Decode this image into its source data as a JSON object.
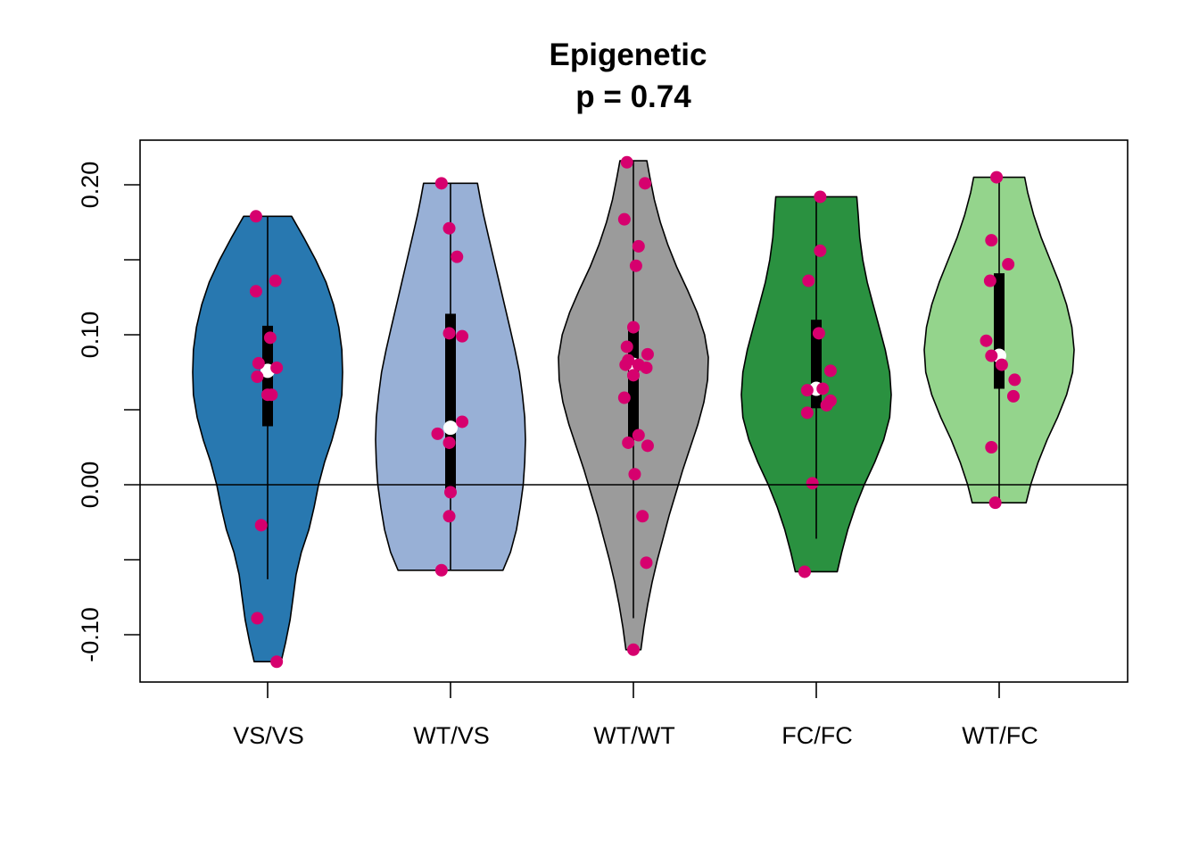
{
  "chart_data": {
    "type": "violin",
    "title": "Epigenetic",
    "subtitle": "p = 0.74",
    "xlabel": "",
    "ylabel": "",
    "ylim": [
      -0.13,
      0.23
    ],
    "yticks": [
      -0.1,
      -0.05,
      0.0,
      0.05,
      0.1,
      0.15,
      0.2
    ],
    "ytick_labels": [
      "-0.10",
      "",
      "0.00",
      "",
      "0.10",
      "",
      "0.20"
    ],
    "reference_line_y": 0.0,
    "point_color": "#d6006e",
    "median_marker_color": "#ffffff",
    "box_color": "#000000",
    "groups": [
      {
        "category": "VS/VS",
        "color": "#2878b0",
        "range": [
          -0.118,
          0.179
        ],
        "whisker": [
          -0.063,
          0.179
        ],
        "box": [
          0.039,
          0.106
        ],
        "median": 0.076,
        "density": [
          [
            -0.118,
            0.18
          ],
          [
            -0.105,
            0.24
          ],
          [
            -0.09,
            0.3
          ],
          [
            -0.075,
            0.34
          ],
          [
            -0.06,
            0.38
          ],
          [
            -0.045,
            0.45
          ],
          [
            -0.03,
            0.55
          ],
          [
            -0.015,
            0.62
          ],
          [
            0.0,
            0.68
          ],
          [
            0.015,
            0.76
          ],
          [
            0.03,
            0.86
          ],
          [
            0.045,
            0.94
          ],
          [
            0.06,
            0.99
          ],
          [
            0.075,
            1.0
          ],
          [
            0.09,
            0.99
          ],
          [
            0.105,
            0.95
          ],
          [
            0.12,
            0.88
          ],
          [
            0.135,
            0.78
          ],
          [
            0.15,
            0.64
          ],
          [
            0.165,
            0.48
          ],
          [
            0.179,
            0.32
          ]
        ],
        "points": [
          [
            -0.09,
            0.179
          ],
          [
            -0.09,
            0.129
          ],
          [
            0.06,
            0.136
          ],
          [
            0.02,
            0.098
          ],
          [
            -0.07,
            0.081
          ],
          [
            0.07,
            0.078
          ],
          [
            -0.08,
            0.072
          ],
          [
            0.0,
            0.06
          ],
          [
            0.03,
            0.06
          ],
          [
            -0.05,
            -0.027
          ],
          [
            -0.08,
            -0.089
          ],
          [
            0.07,
            -0.118
          ]
        ]
      },
      {
        "category": "WT/VS",
        "color": "#98b0d6",
        "range": [
          -0.057,
          0.201
        ],
        "whisker": [
          -0.057,
          0.201
        ],
        "box": [
          -0.007,
          0.114
        ],
        "median": 0.038,
        "density": [
          [
            -0.057,
            0.7
          ],
          [
            -0.045,
            0.8
          ],
          [
            -0.03,
            0.88
          ],
          [
            -0.015,
            0.93
          ],
          [
            0.0,
            0.97
          ],
          [
            0.015,
            0.99
          ],
          [
            0.03,
            1.0
          ],
          [
            0.045,
            0.99
          ],
          [
            0.06,
            0.96
          ],
          [
            0.075,
            0.92
          ],
          [
            0.09,
            0.86
          ],
          [
            0.105,
            0.79
          ],
          [
            0.12,
            0.72
          ],
          [
            0.135,
            0.65
          ],
          [
            0.15,
            0.58
          ],
          [
            0.165,
            0.51
          ],
          [
            0.18,
            0.44
          ],
          [
            0.19,
            0.4
          ],
          [
            0.201,
            0.36
          ]
        ],
        "points": [
          [
            -0.07,
            0.201
          ],
          [
            -0.01,
            0.171
          ],
          [
            0.05,
            0.152
          ],
          [
            -0.01,
            0.101
          ],
          [
            0.09,
            0.099
          ],
          [
            0.09,
            0.042
          ],
          [
            -0.1,
            0.034
          ],
          [
            -0.01,
            0.028
          ],
          [
            0.0,
            -0.005
          ],
          [
            -0.01,
            -0.021
          ],
          [
            -0.07,
            -0.057
          ]
        ]
      },
      {
        "category": "WT/WT",
        "color": "#9b9b9b",
        "range": [
          -0.11,
          0.216
        ],
        "whisker": [
          -0.089,
          0.216
        ],
        "box": [
          0.03,
          0.104
        ],
        "median": 0.08,
        "density": [
          [
            -0.11,
            0.1
          ],
          [
            -0.095,
            0.14
          ],
          [
            -0.08,
            0.19
          ],
          [
            -0.065,
            0.25
          ],
          [
            -0.05,
            0.32
          ],
          [
            -0.035,
            0.4
          ],
          [
            -0.02,
            0.48
          ],
          [
            -0.005,
            0.57
          ],
          [
            0.01,
            0.66
          ],
          [
            0.025,
            0.76
          ],
          [
            0.04,
            0.86
          ],
          [
            0.055,
            0.94
          ],
          [
            0.07,
            0.99
          ],
          [
            0.085,
            1.0
          ],
          [
            0.1,
            0.95
          ],
          [
            0.115,
            0.85
          ],
          [
            0.13,
            0.72
          ],
          [
            0.145,
            0.58
          ],
          [
            0.16,
            0.46
          ],
          [
            0.175,
            0.36
          ],
          [
            0.19,
            0.28
          ],
          [
            0.205,
            0.22
          ],
          [
            0.216,
            0.18
          ]
        ],
        "points": [
          [
            -0.05,
            0.215
          ],
          [
            0.09,
            0.201
          ],
          [
            -0.07,
            0.177
          ],
          [
            0.04,
            0.159
          ],
          [
            0.02,
            0.146
          ],
          [
            0.0,
            0.105
          ],
          [
            -0.05,
            0.092
          ],
          [
            0.11,
            0.087
          ],
          [
            -0.04,
            0.083
          ],
          [
            -0.06,
            0.08
          ],
          [
            0.04,
            0.08
          ],
          [
            0.1,
            0.078
          ],
          [
            0.0,
            0.073
          ],
          [
            -0.07,
            0.058
          ],
          [
            0.04,
            0.033
          ],
          [
            -0.04,
            0.028
          ],
          [
            0.11,
            0.026
          ],
          [
            0.01,
            0.007
          ],
          [
            0.07,
            -0.021
          ],
          [
            0.1,
            -0.052
          ],
          [
            0.0,
            -0.11
          ]
        ]
      },
      {
        "category": "FC/FC",
        "color": "#2a9140",
        "range": [
          -0.058,
          0.192
        ],
        "whisker": [
          -0.036,
          0.192
        ],
        "box": [
          0.051,
          0.11
        ],
        "median": 0.064,
        "density": [
          [
            -0.058,
            0.28
          ],
          [
            -0.045,
            0.34
          ],
          [
            -0.03,
            0.42
          ],
          [
            -0.015,
            0.52
          ],
          [
            0.0,
            0.64
          ],
          [
            0.015,
            0.78
          ],
          [
            0.03,
            0.9
          ],
          [
            0.045,
            0.98
          ],
          [
            0.06,
            1.0
          ],
          [
            0.075,
            0.98
          ],
          [
            0.09,
            0.92
          ],
          [
            0.105,
            0.84
          ],
          [
            0.12,
            0.76
          ],
          [
            0.135,
            0.68
          ],
          [
            0.15,
            0.62
          ],
          [
            0.165,
            0.58
          ],
          [
            0.18,
            0.56
          ],
          [
            0.192,
            0.54
          ]
        ],
        "points": [
          [
            0.03,
            0.192
          ],
          [
            0.03,
            0.156
          ],
          [
            -0.06,
            0.136
          ],
          [
            0.02,
            0.101
          ],
          [
            0.11,
            0.076
          ],
          [
            -0.07,
            0.063
          ],
          [
            0.05,
            0.064
          ],
          [
            0.11,
            0.056
          ],
          [
            0.08,
            0.053
          ],
          [
            -0.07,
            0.048
          ],
          [
            -0.03,
            0.001
          ],
          [
            -0.09,
            -0.058
          ]
        ]
      },
      {
        "category": "WT/FC",
        "color": "#94d48c",
        "range": [
          -0.012,
          0.205
        ],
        "whisker": [
          -0.012,
          0.205
        ],
        "box": [
          0.064,
          0.141
        ],
        "median": 0.086,
        "density": [
          [
            -0.012,
            0.36
          ],
          [
            0.0,
            0.42
          ],
          [
            0.015,
            0.52
          ],
          [
            0.03,
            0.64
          ],
          [
            0.045,
            0.78
          ],
          [
            0.06,
            0.9
          ],
          [
            0.075,
            0.98
          ],
          [
            0.09,
            1.0
          ],
          [
            0.105,
            0.97
          ],
          [
            0.12,
            0.9
          ],
          [
            0.135,
            0.8
          ],
          [
            0.15,
            0.68
          ],
          [
            0.165,
            0.56
          ],
          [
            0.18,
            0.46
          ],
          [
            0.195,
            0.38
          ],
          [
            0.205,
            0.34
          ]
        ],
        "points": [
          [
            -0.02,
            0.205
          ],
          [
            -0.06,
            0.163
          ],
          [
            0.07,
            0.147
          ],
          [
            -0.07,
            0.136
          ],
          [
            -0.1,
            0.096
          ],
          [
            -0.06,
            0.086
          ],
          [
            0.02,
            0.08
          ],
          [
            0.12,
            0.07
          ],
          [
            0.11,
            0.059
          ],
          [
            -0.06,
            0.025
          ],
          [
            -0.03,
            -0.012
          ]
        ]
      }
    ]
  }
}
